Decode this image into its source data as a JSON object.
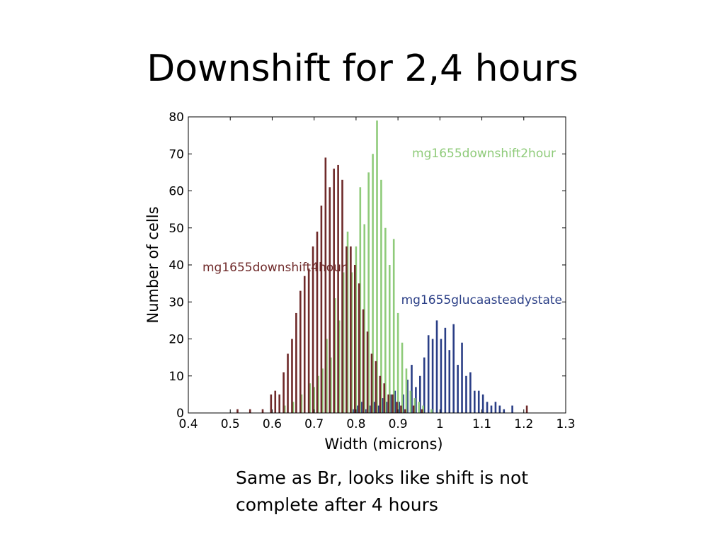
{
  "slide": {
    "title": "Downshift for 2,4 hours",
    "caption_line1": "Same as Br, looks like shift is not",
    "caption_line2": "complete after 4 hours"
  },
  "chart_data": {
    "type": "bar",
    "title": "",
    "xlabel": "Width (microns)",
    "ylabel": "Number of cells",
    "xlim": [
      0.4,
      1.3
    ],
    "ylim": [
      0,
      80
    ],
    "xticks": [
      "0.4",
      "0.5",
      "0.6",
      "0.7",
      "0.8",
      "0.9",
      "1",
      "1.1",
      "1.2",
      "1.3"
    ],
    "yticks": [
      "0",
      "10",
      "20",
      "30",
      "40",
      "50",
      "60",
      "70",
      "80"
    ],
    "grid": false,
    "series": [
      {
        "name": "mg1655glucaasteadystate",
        "color": "#2a3e86",
        "label_position": "right-middle",
        "points": [
          [
            0.79,
            1
          ],
          [
            0.8,
            2
          ],
          [
            0.81,
            3
          ],
          [
            0.82,
            1
          ],
          [
            0.83,
            2
          ],
          [
            0.84,
            3
          ],
          [
            0.85,
            2
          ],
          [
            0.86,
            4
          ],
          [
            0.87,
            3
          ],
          [
            0.88,
            5
          ],
          [
            0.89,
            6
          ],
          [
            0.9,
            3
          ],
          [
            0.91,
            5
          ],
          [
            0.92,
            9
          ],
          [
            0.93,
            13
          ],
          [
            0.94,
            7
          ],
          [
            0.95,
            10
          ],
          [
            0.96,
            15
          ],
          [
            0.97,
            21
          ],
          [
            0.98,
            20
          ],
          [
            0.99,
            25
          ],
          [
            1.0,
            20
          ],
          [
            1.01,
            23
          ],
          [
            1.02,
            17
          ],
          [
            1.03,
            24
          ],
          [
            1.04,
            13
          ],
          [
            1.05,
            19
          ],
          [
            1.06,
            10
          ],
          [
            1.07,
            11
          ],
          [
            1.08,
            6
          ],
          [
            1.09,
            6
          ],
          [
            1.1,
            5
          ],
          [
            1.11,
            3
          ],
          [
            1.12,
            2
          ],
          [
            1.13,
            3
          ],
          [
            1.14,
            2
          ],
          [
            1.15,
            1
          ],
          [
            1.17,
            2
          ]
        ]
      },
      {
        "name": "mg1655downshift2hour",
        "color": "#8fcb7a",
        "label_position": "top-right",
        "points": [
          [
            0.63,
            2
          ],
          [
            0.65,
            3
          ],
          [
            0.67,
            5
          ],
          [
            0.69,
            8
          ],
          [
            0.7,
            7
          ],
          [
            0.71,
            10
          ],
          [
            0.72,
            12
          ],
          [
            0.73,
            20
          ],
          [
            0.74,
            15
          ],
          [
            0.75,
            31
          ],
          [
            0.76,
            25
          ],
          [
            0.77,
            38
          ],
          [
            0.78,
            49
          ],
          [
            0.79,
            38
          ],
          [
            0.8,
            45
          ],
          [
            0.81,
            61
          ],
          [
            0.82,
            51
          ],
          [
            0.83,
            65
          ],
          [
            0.84,
            70
          ],
          [
            0.85,
            79
          ],
          [
            0.86,
            63
          ],
          [
            0.87,
            50
          ],
          [
            0.88,
            40
          ],
          [
            0.89,
            47
          ],
          [
            0.9,
            27
          ],
          [
            0.91,
            19
          ],
          [
            0.92,
            12
          ],
          [
            0.93,
            6
          ],
          [
            0.94,
            4
          ],
          [
            0.95,
            3
          ],
          [
            0.96,
            2
          ],
          [
            0.98,
            1
          ]
        ]
      },
      {
        "name": "mg1655downshift4hour",
        "color": "#6f2a2a",
        "label_position": "left-middle",
        "points": [
          [
            0.52,
            1
          ],
          [
            0.55,
            1
          ],
          [
            0.58,
            1
          ],
          [
            0.6,
            5
          ],
          [
            0.61,
            6
          ],
          [
            0.62,
            5
          ],
          [
            0.63,
            11
          ],
          [
            0.64,
            16
          ],
          [
            0.65,
            20
          ],
          [
            0.66,
            27
          ],
          [
            0.67,
            33
          ],
          [
            0.68,
            37
          ],
          [
            0.69,
            39
          ],
          [
            0.7,
            45
          ],
          [
            0.71,
            49
          ],
          [
            0.72,
            56
          ],
          [
            0.73,
            69
          ],
          [
            0.74,
            61
          ],
          [
            0.75,
            66
          ],
          [
            0.76,
            67
          ],
          [
            0.77,
            63
          ],
          [
            0.78,
            45
          ],
          [
            0.79,
            45
          ],
          [
            0.8,
            40
          ],
          [
            0.81,
            35
          ],
          [
            0.82,
            28
          ],
          [
            0.83,
            22
          ],
          [
            0.84,
            16
          ],
          [
            0.85,
            14
          ],
          [
            0.86,
            10
          ],
          [
            0.87,
            8
          ],
          [
            0.88,
            5
          ],
          [
            0.89,
            5
          ],
          [
            0.9,
            3
          ],
          [
            0.91,
            2
          ],
          [
            0.92,
            1
          ],
          [
            0.94,
            2
          ],
          [
            0.96,
            1
          ],
          [
            1.21,
            2
          ]
        ]
      }
    ]
  }
}
